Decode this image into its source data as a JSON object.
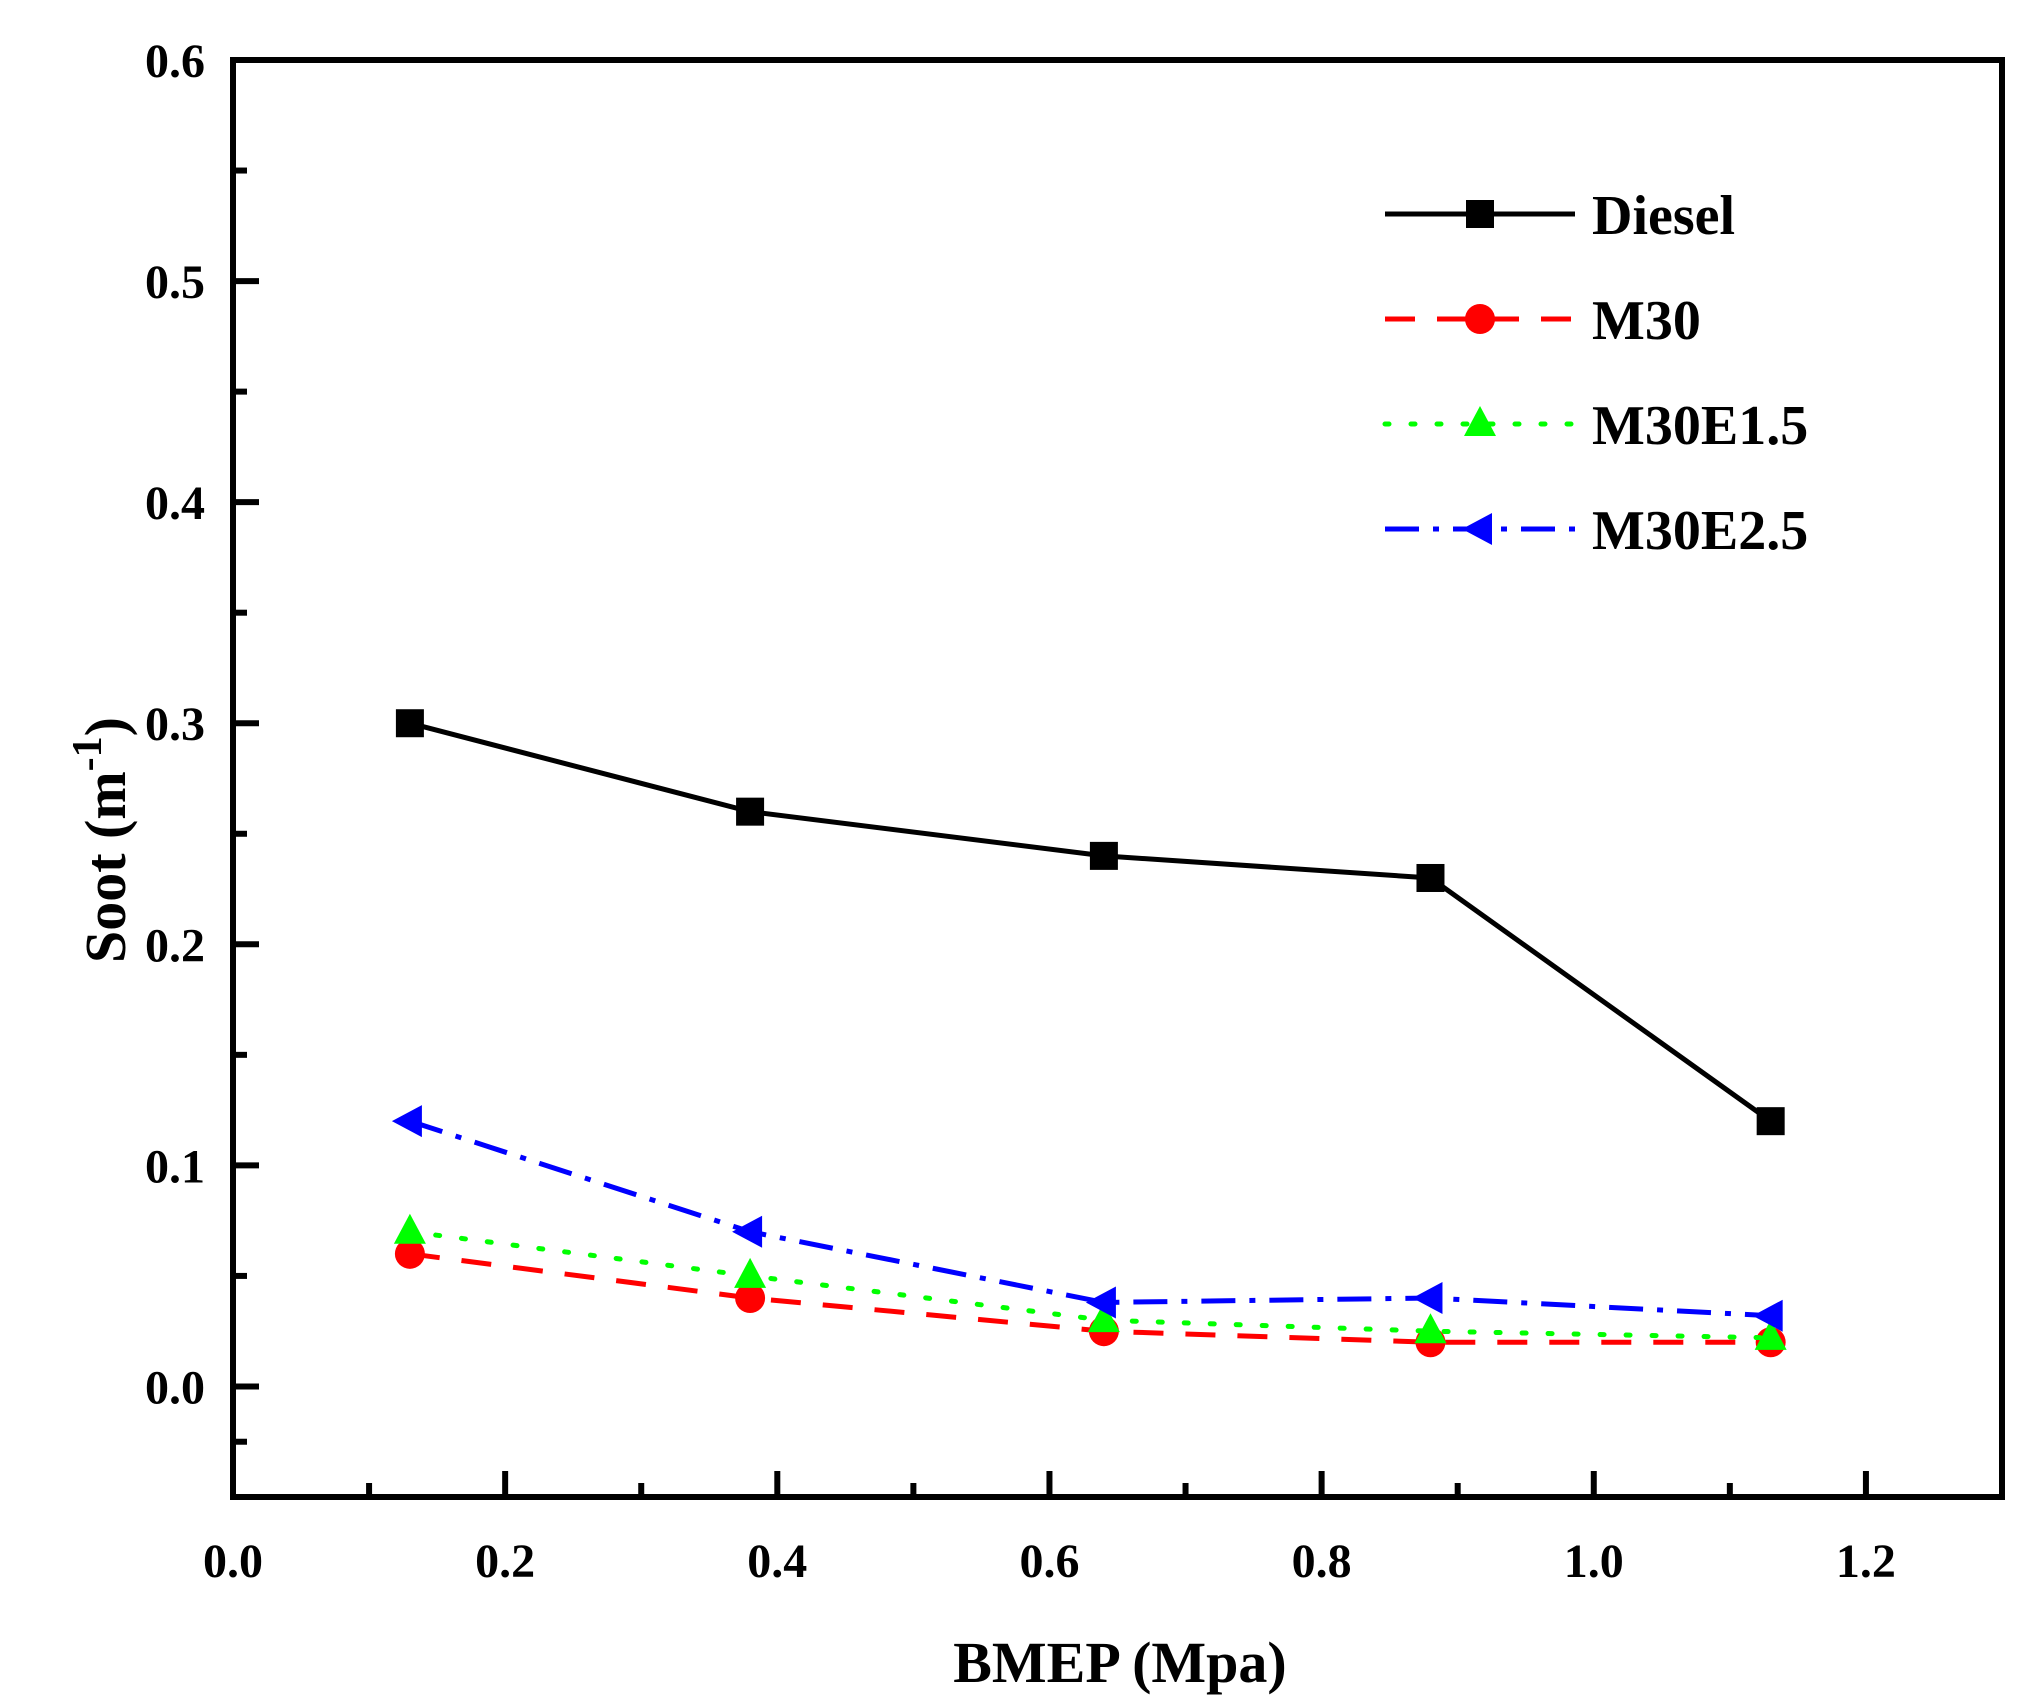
{
  "chart_data": {
    "type": "line",
    "xlabel": "BMEP (Mpa)",
    "ylabel": "Soot (m",
    "ylabel_sup": "-1",
    "ylabel_close": ")",
    "xlim": [
      0.0,
      1.3
    ],
    "ylim": [
      -0.05,
      0.6
    ],
    "xticks": [
      0.0,
      0.2,
      0.4,
      0.6,
      0.8,
      1.0,
      1.2
    ],
    "xtick_labels": [
      "0.0",
      "0.2",
      "0.4",
      "0.6",
      "0.8",
      "1.0",
      "1.2"
    ],
    "yticks": [
      0.0,
      0.1,
      0.2,
      0.3,
      0.4,
      0.5,
      0.6
    ],
    "ytick_labels": [
      "0.0",
      "0.1",
      "0.2",
      "0.3",
      "0.4",
      "0.5",
      "0.6"
    ],
    "grid": false,
    "legend_position": "top-right",
    "x": [
      0.13,
      0.38,
      0.64,
      0.88,
      1.13
    ],
    "series": [
      {
        "name": "Diesel",
        "values": [
          0.3,
          0.26,
          0.24,
          0.23,
          0.12
        ],
        "color": "#000000",
        "dash": "solid",
        "marker": "square"
      },
      {
        "name": "M30",
        "values": [
          0.06,
          0.04,
          0.025,
          0.02,
          0.02
        ],
        "color": "#ff0000",
        "dash": "dash",
        "marker": "circle"
      },
      {
        "name": "M30E1.5",
        "values": [
          0.07,
          0.05,
          0.03,
          0.025,
          0.022
        ],
        "color": "#00ff00",
        "dash": "dot",
        "marker": "triangle-up"
      },
      {
        "name": "M30E2.5",
        "values": [
          0.12,
          0.07,
          0.038,
          0.04,
          0.032
        ],
        "color": "#0000ff",
        "dash": "dashdot",
        "marker": "triangle-left"
      }
    ]
  }
}
